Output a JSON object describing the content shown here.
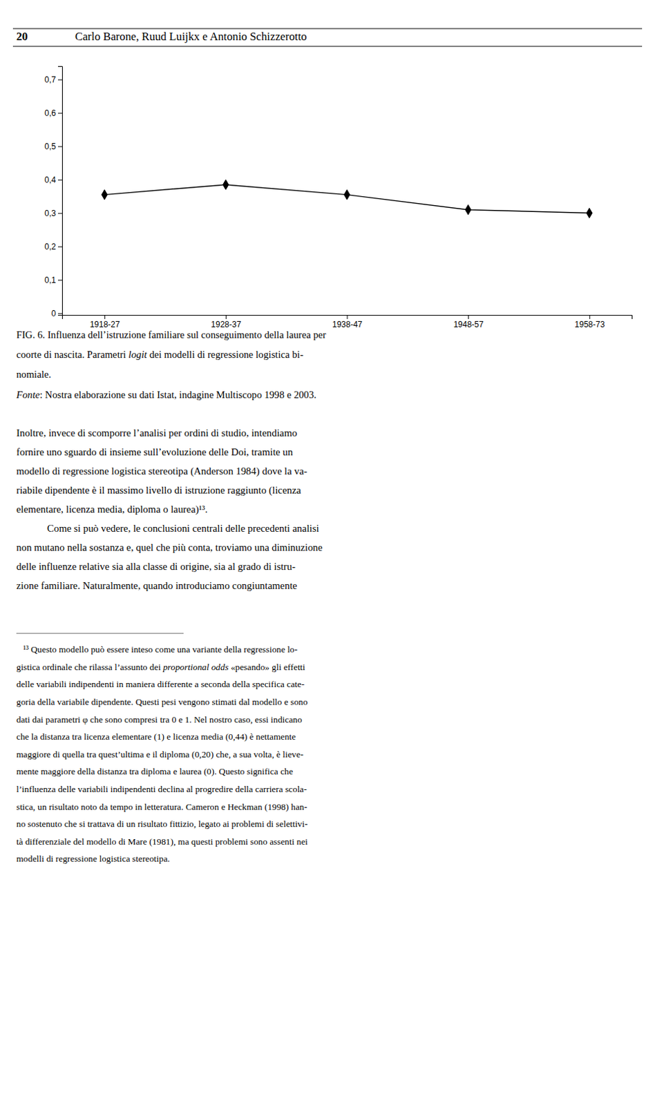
{
  "header_number": "20",
  "header_title": "Carlo Barone, Ruud Luijkx e Antonio Schizzerotto",
  "chart_data": {
    "type": "line",
    "categories": [
      "1918-27",
      "1928-37",
      "1938-47",
      "1948-57",
      "1958-73"
    ],
    "values": [
      0.355,
      0.385,
      0.355,
      0.31,
      0.3
    ],
    "color": "#000000",
    "marker": "diamond",
    "ylim": [
      -0.005,
      0.74
    ],
    "yticks": [
      0,
      {
        "value": 0.1,
        "label": "0,1"
      },
      {
        "value": 0.2,
        "label": "0,2"
      },
      {
        "value": 0.3,
        "label": "0,3"
      },
      {
        "value": 0.4,
        "label": "0,4"
      },
      {
        "value": 0.5,
        "label": "0,5"
      },
      {
        "value": 0.6,
        "label": "0,6"
      },
      {
        "value": 0.7,
        "label": "0,7"
      }
    ],
    "grid": false
  },
  "caption": [
    [
      {
        "text": "FIG. 6. Influenza dell’istruzione familiare sul conseguimento della laurea per"
      }
    ],
    [
      {
        "text": "coorte di nascita. Parametri "
      },
      {
        "text": "logit",
        "italic": true
      },
      {
        "text": " dei modelli di regressione logistica bi-"
      }
    ],
    [
      {
        "text": "nomiale."
      }
    ],
    [
      {
        "text": "Fonte",
        "italic": true
      },
      {
        "text": ": Nostra elaborazione su dati Istat, indagine Multiscopo 1998 e 2003."
      }
    ]
  ],
  "body": [
    [
      "Inoltre, invece di scomporre l’analisi per ordini di studio, intendiamo",
      "fornire uno sguardo di insieme sull’evoluzione delle Doi, tramite un",
      "modello di regressione logistica stereotipa (Anderson 1984) dove la va-",
      "riabile dipendente è il massimo livello di istruzione raggiunto (licenza",
      "elementare, licenza media, diploma o laurea)¹³."
    ],
    [
      "Come si può vedere, le conclusioni centrali delle precedenti analisi",
      "non mutano nella sostanza e, quel che più conta, troviamo una diminuzione",
      "delle influenze relative sia alla classe di origine, sia al grado di istru-",
      "zione familiare. Naturalmente, quando introduciamo congiuntamente"
    ]
  ],
  "footnotes": [
    [
      {
        "text": "   ¹³ Questo modello può essere inteso come una variante della regressione lo-"
      }
    ],
    [
      {
        "text": "gistica ordinale che rilassa l’assunto dei "
      },
      {
        "text": "proportional odds",
        "italic": true
      },
      {
        "text": " «pesando» gli effetti"
      }
    ],
    [
      {
        "text": "delle variabili indipendenti in maniera differente a seconda della specifica cate-"
      }
    ],
    [
      {
        "text": "goria della variabile dipendente. Questi pesi vengono stimati dal modello e sono"
      }
    ],
    [
      {
        "text": "dati dai parametri φ che sono compresi tra 0 e 1. Nel nostro caso, essi indicano"
      }
    ],
    [
      {
        "text": "che la distanza tra licenza elementare (1) e licenza media (0,44) è nettamente"
      }
    ],
    [
      {
        "text": "maggiore di quella tra quest’ultima e il diploma (0,20) che, a sua volta, è lieve-"
      }
    ],
    [
      {
        "text": "mente maggiore della distanza tra diploma e laurea (0). Questo significa che"
      }
    ],
    [
      {
        "text": "l’influenza delle variabili indipendenti declina al progredire della carriera scola-"
      }
    ],
    [
      {
        "text": "stica, un risultato noto da tempo in letteratura. Cameron e Heckman (1998) han-"
      }
    ],
    [
      {
        "text": "no sostenuto che si trattava di un risultato fittizio, legato ai problemi di selettivi-"
      }
    ],
    [
      {
        "text": "tà differenziale del modello di Mare (1981), ma questi problemi sono assenti nei"
      }
    ],
    [
      {
        "text": "modelli di regressione logistica stereotipa."
      }
    ]
  ]
}
